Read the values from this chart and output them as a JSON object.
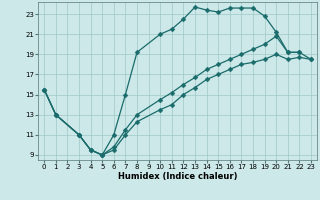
{
  "xlabel": "Humidex (Indice chaleur)",
  "bg_color": "#cce8e8",
  "line_color": "#1a6b6b",
  "grid_color": "#a0c8c8",
  "xlim": [
    -0.5,
    23.5
  ],
  "ylim": [
    8.5,
    24.2
  ],
  "xticks": [
    0,
    1,
    2,
    3,
    4,
    5,
    6,
    7,
    8,
    9,
    10,
    11,
    12,
    13,
    14,
    15,
    16,
    17,
    18,
    19,
    20,
    21,
    22,
    23
  ],
  "yticks": [
    9,
    11,
    13,
    15,
    17,
    19,
    21,
    23
  ],
  "series1_x": [
    0,
    1,
    3,
    4,
    5,
    6,
    7,
    8,
    10,
    11,
    12,
    13,
    14,
    15,
    16,
    17,
    18,
    19,
    20,
    21,
    22
  ],
  "series1_y": [
    15.5,
    13.0,
    11.0,
    9.5,
    9.0,
    11.0,
    15.0,
    19.2,
    21.0,
    21.5,
    22.5,
    23.7,
    23.4,
    23.2,
    23.6,
    23.6,
    23.6,
    22.8,
    21.2,
    19.2,
    19.2
  ],
  "series2_x": [
    0,
    1,
    3,
    4,
    5,
    6,
    7,
    8,
    10,
    11,
    12,
    13,
    14,
    15,
    16,
    17,
    18,
    19,
    20,
    21,
    22,
    23
  ],
  "series2_y": [
    15.5,
    13.0,
    11.0,
    9.5,
    9.0,
    9.8,
    11.5,
    13.0,
    14.5,
    15.2,
    16.0,
    16.7,
    17.5,
    18.0,
    18.5,
    19.0,
    19.5,
    20.0,
    20.8,
    19.2,
    19.2,
    18.5
  ],
  "series3_x": [
    0,
    1,
    3,
    4,
    5,
    6,
    7,
    8,
    10,
    11,
    12,
    13,
    14,
    15,
    16,
    17,
    18,
    19,
    20,
    21,
    22,
    23
  ],
  "series3_y": [
    15.5,
    13.0,
    11.0,
    9.5,
    9.0,
    9.5,
    11.0,
    12.3,
    13.5,
    14.0,
    15.0,
    15.7,
    16.5,
    17.0,
    17.5,
    18.0,
    18.2,
    18.5,
    19.0,
    18.5,
    18.7,
    18.5
  ]
}
